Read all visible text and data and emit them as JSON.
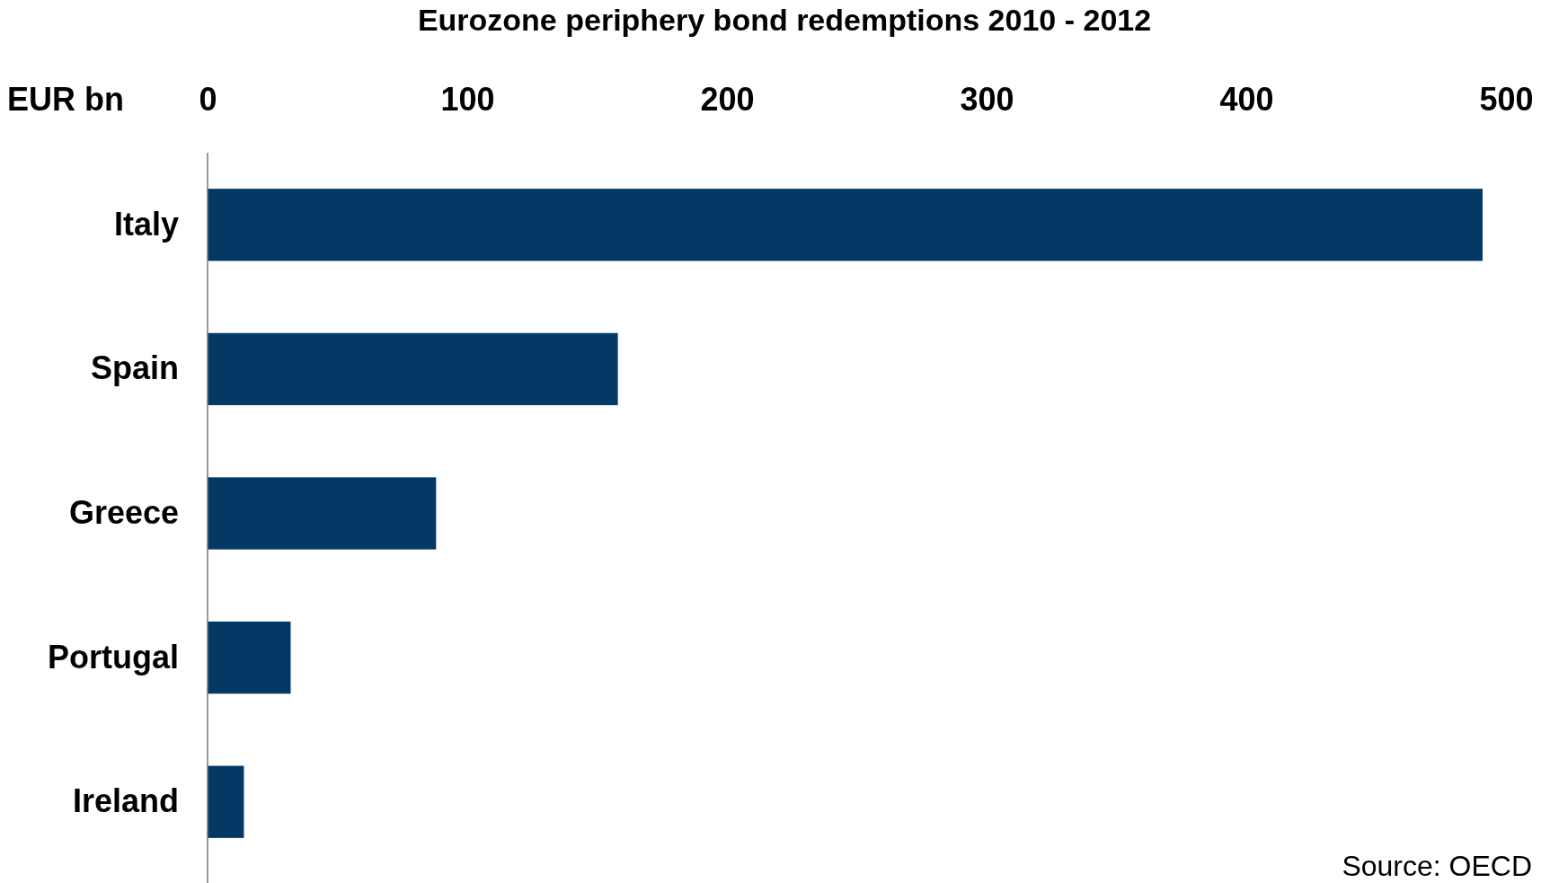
{
  "chart_data": {
    "type": "bar",
    "orientation": "horizontal",
    "title": "Eurozone periphery bond redemptions 2010 - 2012",
    "xlabel": "EUR bn",
    "categories": [
      "Italy",
      "Spain",
      "Greece",
      "Portugal",
      "Ireland"
    ],
    "values": [
      491,
      158,
      88,
      32,
      14
    ],
    "color": "#043865",
    "xlim": [
      0,
      500
    ],
    "xticks": [
      0,
      100,
      200,
      300,
      400,
      500
    ],
    "grid": false,
    "annotations": [
      "Source: OECD"
    ]
  }
}
